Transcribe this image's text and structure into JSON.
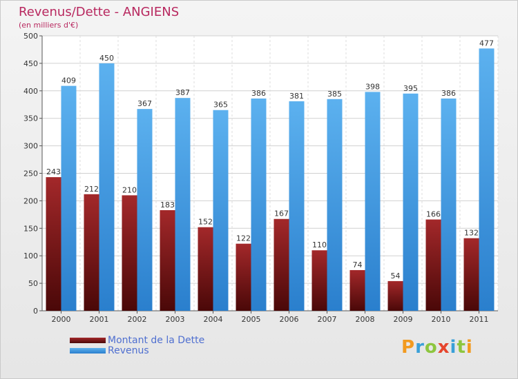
{
  "chart_data": {
    "type": "bar",
    "title": "Revenus/Dette - ANGIENS",
    "subtitle": "(en milliers d'€)",
    "categories": [
      "2000",
      "2001",
      "2002",
      "2003",
      "2004",
      "2005",
      "2006",
      "2007",
      "2008",
      "2009",
      "2010",
      "2011"
    ],
    "series": [
      {
        "name": "Montant de la Dette",
        "color": "#7b1c1c",
        "values": [
          243,
          212,
          210,
          183,
          152,
          122,
          167,
          110,
          74,
          54,
          166,
          132
        ]
      },
      {
        "name": "Revenus",
        "color": "#4aa3e6",
        "values": [
          409,
          450,
          367,
          387,
          365,
          386,
          381,
          385,
          398,
          395,
          386,
          477
        ]
      }
    ],
    "ylim": [
      0,
      500
    ],
    "yticks": [
      0,
      50,
      100,
      150,
      200,
      250,
      300,
      350,
      400,
      450,
      500
    ],
    "grid": true,
    "legend_position": "bottom-left"
  },
  "logo": {
    "text": "Proxiti"
  }
}
